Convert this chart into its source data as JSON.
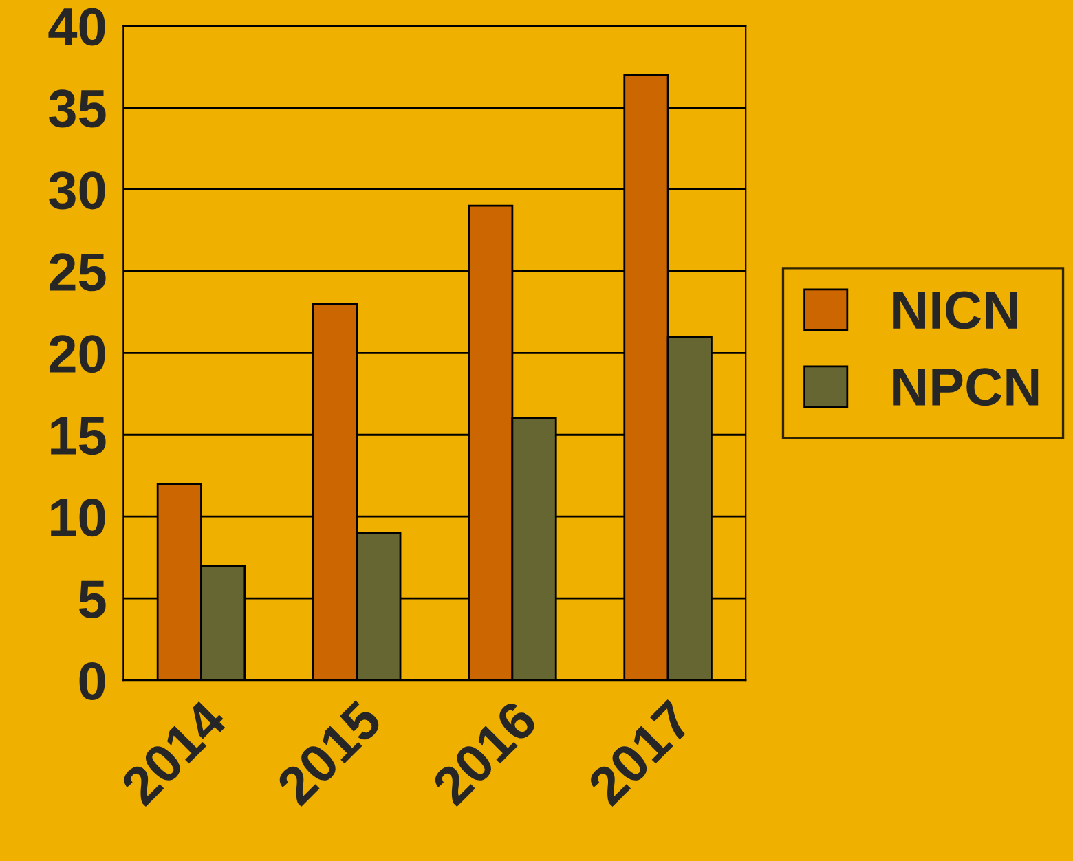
{
  "chart_data": {
    "type": "bar",
    "categories": [
      "2014",
      "2015",
      "2016",
      "2017"
    ],
    "series": [
      {
        "name": "NICN",
        "color": "#cc6600",
        "values": [
          12,
          23,
          29,
          37
        ]
      },
      {
        "name": "NPCN",
        "color": "#666633",
        "values": [
          7,
          9,
          16,
          21
        ]
      }
    ],
    "ylim": [
      0,
      40
    ],
    "yticks": [
      0,
      5,
      10,
      15,
      20,
      25,
      30,
      35,
      40
    ],
    "grid": "y",
    "legend": "right"
  }
}
